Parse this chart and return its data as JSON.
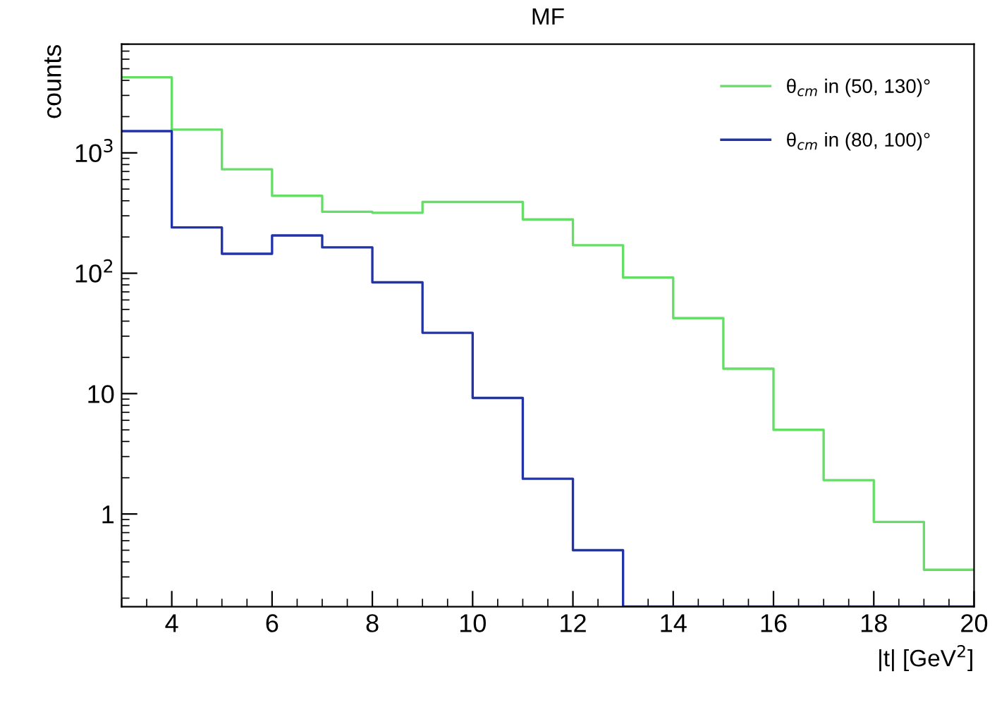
{
  "chart_data": {
    "type": "histogram",
    "title": "MF",
    "xlabel": "|t| [GeV$^{2}$]",
    "ylabel": "counts",
    "bins": [
      3,
      4,
      5,
      6,
      7,
      8,
      9,
      10,
      11,
      12,
      13,
      14,
      15,
      16,
      17,
      18,
      19,
      20
    ],
    "series": [
      {
        "name": "θ$_{cm}$ in (50, 130)°",
        "color": "#66dd66",
        "values": [
          4240,
          1560,
          730,
          440,
          324,
          318,
          391,
          391,
          280,
          171,
          92,
          42.4,
          16.1,
          5.0,
          1.91,
          0.86,
          0.344
        ]
      },
      {
        "name": "θ$_{cm}$ in (80, 100)°",
        "color": "#2233aa",
        "values": [
          1515,
          240,
          145,
          206,
          164,
          84,
          32,
          9.2,
          1.96,
          0.5,
          null,
          null,
          null,
          null,
          null,
          null,
          null
        ]
      }
    ],
    "log": "y",
    "xlim": [
      3,
      20
    ],
    "ylim": [
      0.17,
      8000
    ],
    "xticks": [
      4,
      6,
      8,
      10,
      12,
      14,
      16,
      18,
      20
    ],
    "yticks": [
      1,
      10,
      {
        "value": 100,
        "label": "10$^{2}$"
      },
      {
        "value": 1000,
        "label": "10$^{3}$"
      }
    ],
    "grid": false,
    "legend": "top right"
  }
}
